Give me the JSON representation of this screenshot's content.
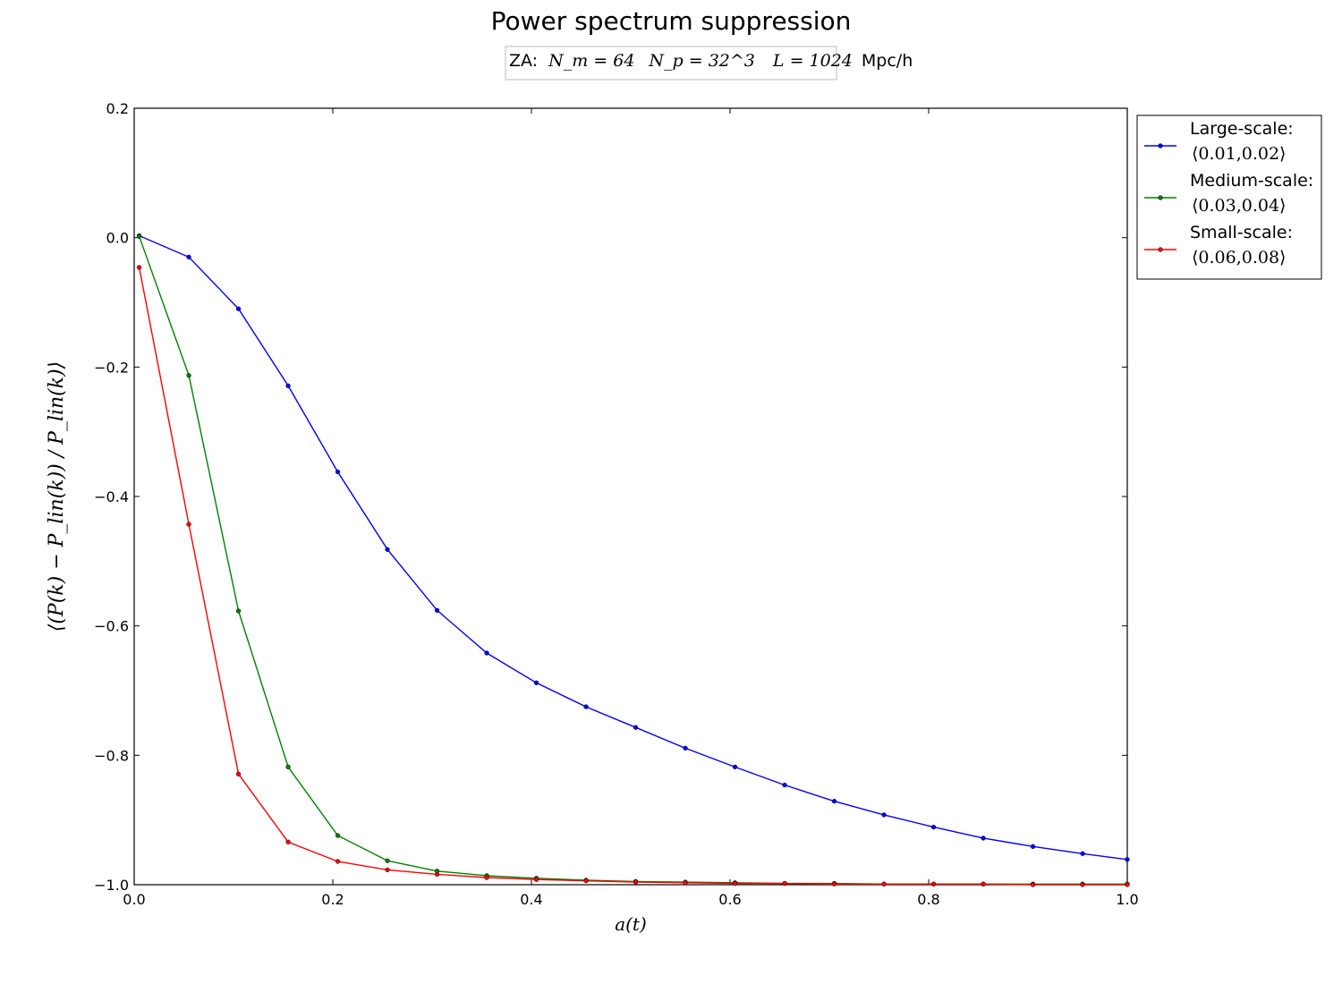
{
  "chart_data": {
    "type": "line",
    "title": "Power spectrum suppression",
    "subtitle": {
      "prefix": "ZA:",
      "nm": "N_m = 64",
      "np": "N_p = 32^3",
      "box": "L = 1024",
      "unit": "Mpc/h"
    },
    "xlabel": "a(t)",
    "ylabel": "⟨(P(k) − P_lin(k)) / P_lin(k)⟩",
    "xlim": [
      0.0,
      1.0
    ],
    "ylim": [
      -1.0,
      0.2
    ],
    "xticks": [
      0.0,
      0.2,
      0.4,
      0.6,
      0.8,
      1.0
    ],
    "xtick_labels": [
      "0.0",
      "0.2",
      "0.4",
      "0.6",
      "0.8",
      "1.0"
    ],
    "yticks": [
      -1.0,
      -0.8,
      -0.6,
      -0.4,
      -0.2,
      0.0,
      0.2
    ],
    "ytick_labels": [
      "−1.0",
      "−0.8",
      "−0.6",
      "−0.4",
      "−0.2",
      "0.0",
      "0.2"
    ],
    "legend_position": "outside-right-top",
    "grid": false,
    "x": [
      0.005,
      0.055,
      0.105,
      0.155,
      0.205,
      0.255,
      0.305,
      0.355,
      0.405,
      0.455,
      0.505,
      0.555,
      0.605,
      0.655,
      0.705,
      0.755,
      0.805,
      0.855,
      0.905,
      0.955,
      1.0
    ],
    "series": [
      {
        "name_line1": "Large-scale:",
        "name_line2": "⟨0.01,0.02⟩",
        "color": "#0000ff",
        "values": [
          0.003,
          -0.03,
          -0.11,
          -0.229,
          -0.362,
          -0.482,
          -0.576,
          -0.642,
          -0.688,
          -0.725,
          -0.757,
          -0.789,
          -0.818,
          -0.846,
          -0.871,
          -0.892,
          -0.911,
          -0.928,
          -0.941,
          -0.952,
          -0.961
        ]
      },
      {
        "name_line1": "Medium-scale:",
        "name_line2": "⟨0.03,0.04⟩",
        "color": "#008000",
        "values": [
          0.002,
          -0.213,
          -0.577,
          -0.818,
          -0.924,
          -0.963,
          -0.979,
          -0.986,
          -0.99,
          -0.993,
          -0.995,
          -0.996,
          -0.997,
          -0.998,
          -0.998,
          -0.999,
          -0.999,
          -0.999,
          -0.999,
          -0.999,
          -0.999
        ]
      },
      {
        "name_line1": "Small-scale:",
        "name_line2": "⟨0.06,0.08⟩",
        "color": "#ff0000",
        "values": [
          -0.046,
          -0.443,
          -0.829,
          -0.934,
          -0.964,
          -0.977,
          -0.984,
          -0.989,
          -0.992,
          -0.994,
          -0.996,
          -0.997,
          -0.998,
          -0.998,
          -0.999,
          -0.999,
          -0.999,
          -0.999,
          -1.0,
          -1.0,
          -1.0
        ]
      }
    ]
  }
}
